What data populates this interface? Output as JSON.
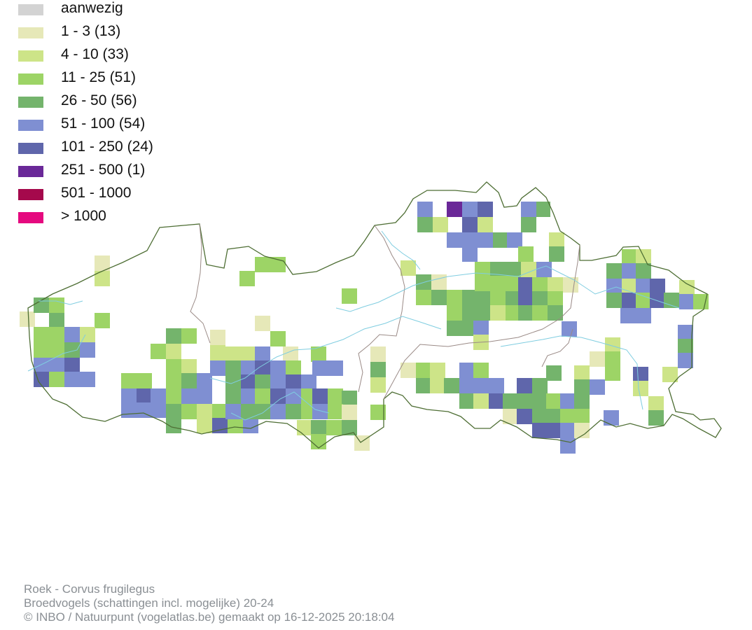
{
  "legend": {
    "items": [
      {
        "label": "aanwezig",
        "color": "#d3d3d3"
      },
      {
        "label": "1 - 3 (13)",
        "color": "#e6e8b8"
      },
      {
        "label": "4 - 10 (33)",
        "color": "#cde488"
      },
      {
        "label": "11 - 25 (51)",
        "color": "#9dd466"
      },
      {
        "label": "26 - 50 (56)",
        "color": "#74b46c"
      },
      {
        "label": "51 - 100 (54)",
        "color": "#7f8fd2"
      },
      {
        "label": "101 - 250 (24)",
        "color": "#5f66ab"
      },
      {
        "label": "251 - 500 (1)",
        "color": "#6a2898"
      },
      {
        "label": "501 - 1000",
        "color": "#a5094c"
      },
      {
        "label": "> 1000",
        "color": "#e5097f"
      }
    ]
  },
  "map": {
    "border_color": "#4e6e34",
    "province_color": "#9a8a86",
    "river_color": "#7fcde0"
  },
  "footer": {
    "line1": "Roek - Corvus frugilegus",
    "line2": "Broedvogels (schattingen incl. mogelijke) 20-24",
    "line3": "© INBO / Natuurpunt (vogelatlas.be) gemaakt op 16-12-2025 20:18:04"
  }
}
